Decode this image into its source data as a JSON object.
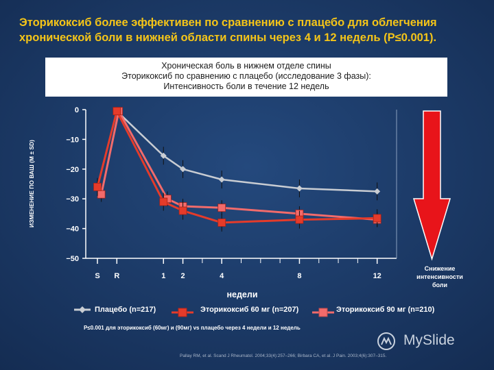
{
  "slide": {
    "title": "Эторикоксиб более эффективен по сравнению с плацебо для облегчения хронической боли в нижней области спины через 4 и 12 недель (P≤0.001).",
    "box_lines": [
      "Хроническая боль в нижнем отделе спины",
      "Эторикоксиб по сравнению с плацебо (исследование 3 фазы):",
      "Интенсивность боли в течение 12 недель"
    ],
    "arrow_label": [
      "Снижение",
      "интенсивности",
      "боли"
    ],
    "footnote": "P≤0.001  для эторикоксиб  (60мг) и (90мг) vs плацебо  через 4 недели и 12 недель",
    "reference": "Pallay RM, et al. Scand J Rheumatol. 2004;33(4):257–266; Birbara CA, et al. J Pain. 2003;4(6):307–315.",
    "brand": "MySlide",
    "colors": {
      "background": "#1c3a66",
      "title": "#f5c518",
      "placebo": "#c9cdd3",
      "etori60": "#e53b2a",
      "etori90": "#f26b6b",
      "arrow": "#e8141a"
    }
  },
  "chart_data": {
    "type": "line",
    "ylabel": "ИЗМЕНЕНИЕ ПО ВАШ (M ± SD)",
    "xlabel": "недели",
    "ylim": [
      -50,
      0
    ],
    "yticks": [
      "0",
      "−10",
      "−20",
      "−30",
      "−40",
      "−50"
    ],
    "ytick_values": [
      0,
      -10,
      -20,
      -30,
      -40,
      -50
    ],
    "x_categories": [
      "S",
      "R",
      "1",
      "2",
      "4",
      "8",
      "12"
    ],
    "x_tick_weeks": [
      -2.4,
      -1.4,
      1,
      2,
      4,
      8,
      12
    ],
    "series": [
      {
        "name": "Плацебо (n=217)",
        "marker": "diamond",
        "x": [
          -2.4,
          -1.4,
          1,
          2,
          4,
          8,
          12
        ],
        "values": [
          -26,
          -0.5,
          -15.5,
          -20,
          -23.5,
          -26.5,
          -27.5
        ]
      },
      {
        "name": "Эторикоксиб 60 мг (n=207)",
        "marker": "square",
        "x": [
          -2.4,
          -1.4,
          1,
          2,
          4,
          8,
          12
        ],
        "values": [
          -26,
          -0.5,
          -31,
          -34,
          -38,
          -37,
          -36.5
        ]
      },
      {
        "name": "Эторикоксиб 90  мг (n=210)",
        "marker": "square",
        "x": [
          -2.2,
          -1.3,
          1.2,
          2,
          4,
          8,
          12
        ],
        "values": [
          -28.5,
          -0.5,
          -30,
          -32.5,
          -33,
          -35,
          -37
        ]
      }
    ]
  }
}
